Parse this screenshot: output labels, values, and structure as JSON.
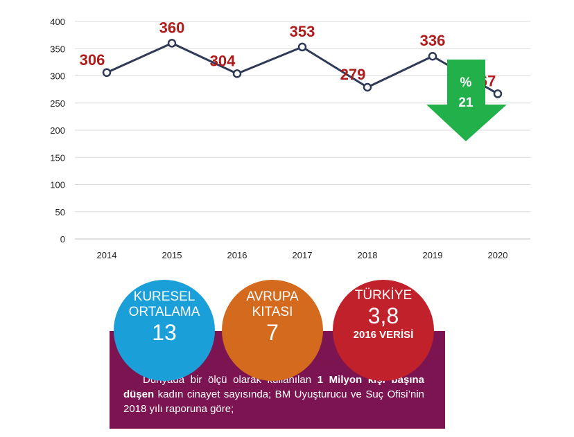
{
  "chart_data": {
    "type": "line",
    "x": [
      "2014",
      "2015",
      "2016",
      "2017",
      "2018",
      "2019",
      "2020"
    ],
    "values": [
      306,
      360,
      304,
      353,
      279,
      336,
      267
    ],
    "data_labels": [
      "306",
      "360",
      "304",
      "353",
      "279",
      "336",
      "267"
    ],
    "yticks": [
      "0",
      "50",
      "100",
      "150",
      "200",
      "250",
      "300",
      "350",
      "400"
    ],
    "ylim": [
      0,
      400
    ],
    "grid": true,
    "line_color": "#2f3a57",
    "label_color": "#b01c1c",
    "annotation": {
      "line1": "%",
      "line2": "21",
      "color": "#22b04b",
      "direction": "down"
    }
  },
  "stats": [
    {
      "label_line1": "KURESEL",
      "label_line2": "ORTALAMA",
      "value": "13",
      "color": "#1a9fd9"
    },
    {
      "label_line1": "AVRUPA",
      "label_line2": "KITASI",
      "value": "7",
      "color": "#d46a1d"
    },
    {
      "label_line1": "TÜRKİYE",
      "value": "3,8",
      "sub": "2016 VERİSİ",
      "color": "#c0212b"
    }
  ],
  "note": {
    "part1": "Dünyada bir ölçü olarak kullanılan ",
    "bold": "1 Milyon kişi başına düşen",
    "part2": " kadın cinayet sayısında; BM Uyuşturucu ve Suç Ofisi’nin 2018 yılı raporuna göre;",
    "background": "#7b1450"
  }
}
